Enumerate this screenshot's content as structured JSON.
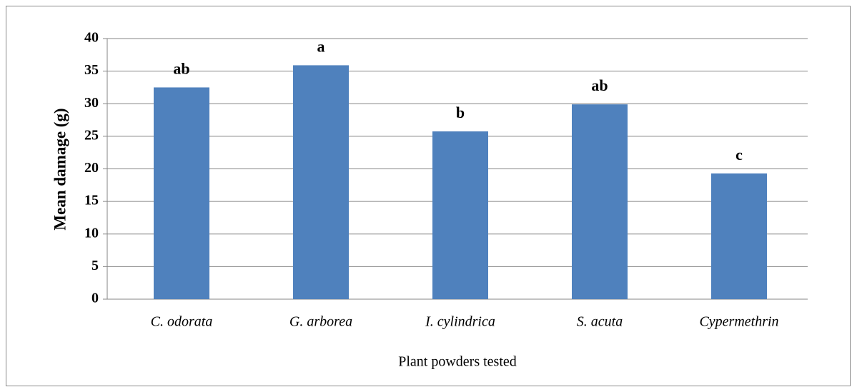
{
  "chart_data": {
    "type": "bar",
    "categories": [
      "C. odorata",
      "G. arborea",
      "I. cylindrica",
      "S. acuta",
      "Cypermethrin"
    ],
    "values": [
      32.5,
      35.9,
      25.75,
      29.9,
      19.3
    ],
    "annotations": [
      "ab",
      "a",
      "b",
      "ab",
      "c"
    ],
    "color": "#4f81bd",
    "y_label": "Mean damage (g)",
    "x_label": "Plant powders tested",
    "ylim": [
      0,
      40
    ],
    "yticks": [
      0,
      5,
      10,
      15,
      20,
      25,
      30,
      35,
      40
    ],
    "grid": true
  }
}
